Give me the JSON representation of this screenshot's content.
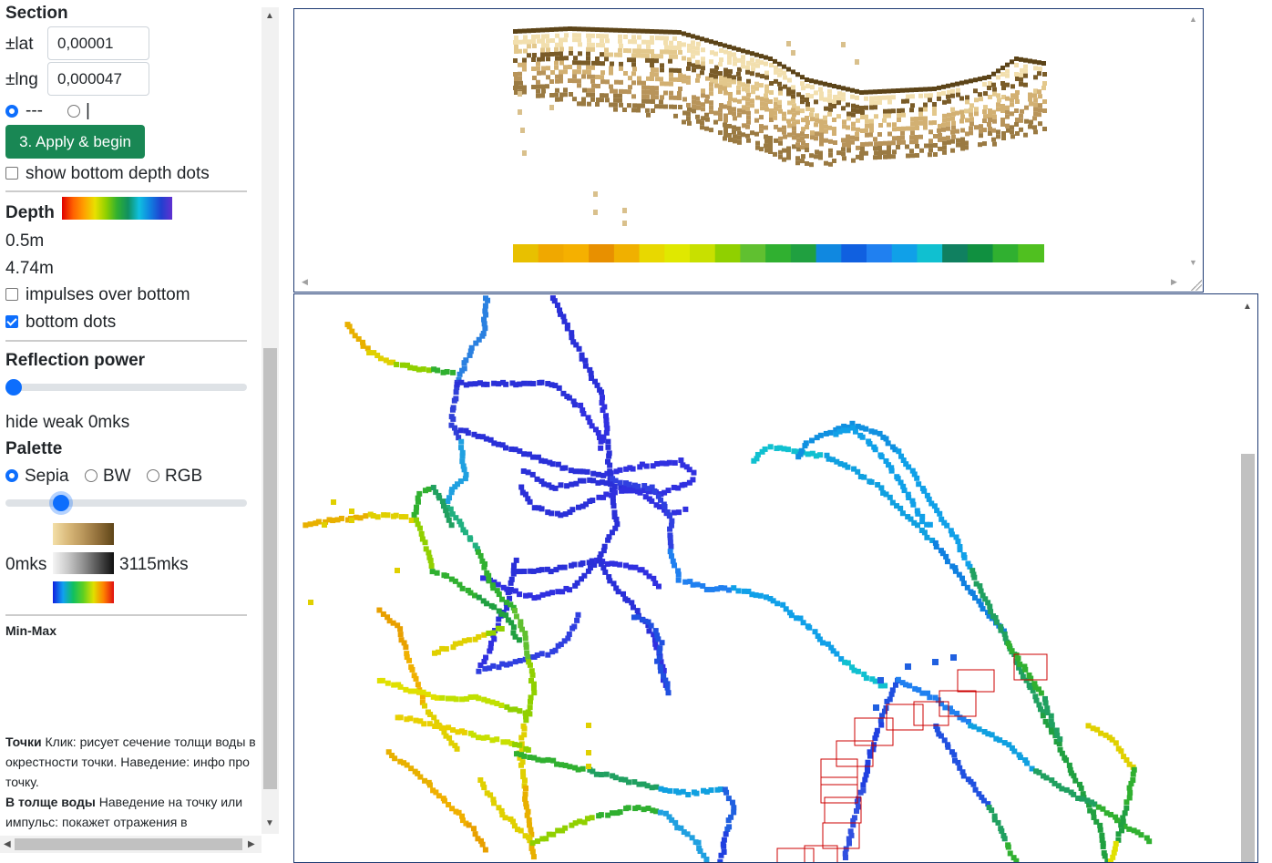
{
  "section": {
    "title": "Section",
    "lat_label": "±lat",
    "lat_value": "0,00001",
    "lng_label": "±lng",
    "lng_value": "0,000047",
    "radio_dash_label": "---",
    "radio_pipe_label": "|",
    "apply_button": "3. Apply & begin",
    "show_bottom_depth_dots": "show bottom depth dots"
  },
  "depth": {
    "title": "Depth",
    "min": "0.5m",
    "max": "4.74m",
    "impulses_over_bottom": "impulses over bottom",
    "bottom_dots": "bottom dots",
    "bottom_dots_checked": true
  },
  "reflection": {
    "title": "Reflection power",
    "slider_value": 0,
    "hide_weak": "hide weak 0mks"
  },
  "palette": {
    "title": "Palette",
    "options": [
      "Sepia",
      "BW",
      "RGB"
    ],
    "selected": "Sepia",
    "slider_fraction": 0.23,
    "min_label": "0mks",
    "max_label": "3115mks"
  },
  "minmax": {
    "title": "Min-Max"
  },
  "help": {
    "points_bold": "Точки",
    "points_text": " Клик: рисует сечение толщи воды в окрестности точки. Наведение: инфо про точку.",
    "water_bold": "В толще воды",
    "water_text": " Наведение на точку или импульс: покажет отражения в"
  },
  "colors": {
    "primary": "#0d6efd",
    "apply_green": "#198754",
    "panel_border": "#1f3b73",
    "marker_red": "#cc0000"
  }
}
